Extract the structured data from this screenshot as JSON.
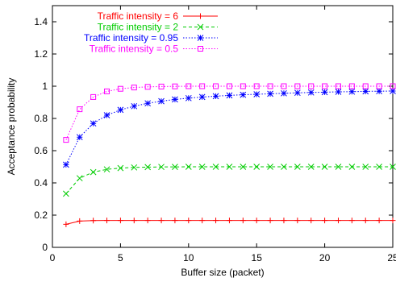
{
  "chart_data": {
    "type": "line",
    "title": "",
    "xlabel": "Buffer size (packet)",
    "ylabel": "Acceptance probability",
    "xlim": [
      0,
      25
    ],
    "ylim": [
      0,
      1.5
    ],
    "xticks": [
      0,
      5,
      10,
      15,
      20,
      25
    ],
    "yticks": [
      0,
      0.2,
      0.4,
      0.6,
      0.8,
      1,
      1.2,
      1.4
    ],
    "grid": false,
    "legend_position": "top-left",
    "x": [
      1,
      2,
      3,
      4,
      5,
      6,
      7,
      8,
      9,
      10,
      11,
      12,
      13,
      14,
      15,
      16,
      17,
      18,
      19,
      20,
      21,
      22,
      23,
      24,
      25
    ],
    "series": [
      {
        "name": "Traffic intensity = 6",
        "color": "#ff0000",
        "marker": "plus",
        "line_style": "solid",
        "values": [
          0.143,
          0.163,
          0.1665,
          0.1666,
          0.1667,
          0.1667,
          0.1667,
          0.1667,
          0.1667,
          0.1667,
          0.1667,
          0.1667,
          0.1667,
          0.1667,
          0.1667,
          0.1667,
          0.1667,
          0.1667,
          0.1667,
          0.1667,
          0.1667,
          0.1667,
          0.1667,
          0.1667,
          0.1667
        ]
      },
      {
        "name": "Traffic intensity = 2",
        "color": "#00cc00",
        "marker": "x",
        "line_style": "dashed",
        "values": [
          0.333,
          0.429,
          0.467,
          0.484,
          0.492,
          0.496,
          0.498,
          0.499,
          0.4995,
          0.4998,
          0.5,
          0.5,
          0.5,
          0.5,
          0.5,
          0.5,
          0.5,
          0.5,
          0.5,
          0.5,
          0.5,
          0.5,
          0.5,
          0.5,
          0.5
        ]
      },
      {
        "name": "Traffic intensity = 0.95",
        "color": "#0000ff",
        "marker": "asterisk",
        "line_style": "dotted",
        "values": [
          0.513,
          0.684,
          0.769,
          0.82,
          0.853,
          0.876,
          0.894,
          0.907,
          0.918,
          0.926,
          0.933,
          0.938,
          0.943,
          0.947,
          0.95,
          0.953,
          0.956,
          0.959,
          0.961,
          0.963,
          0.965,
          0.966,
          0.968,
          0.969,
          0.97
        ]
      },
      {
        "name": "Traffic intensity = 0.5",
        "color": "#ff00ff",
        "marker": "square",
        "line_style": "dotted",
        "values": [
          0.667,
          0.857,
          0.933,
          0.968,
          0.984,
          0.992,
          0.996,
          0.998,
          0.999,
          1.0,
          1.0,
          1.0,
          1.0,
          1.0,
          1.0,
          1.0,
          1.0,
          1.0,
          1.0,
          1.0,
          1.0,
          1.0,
          1.0,
          1.0,
          1.0
        ]
      }
    ]
  }
}
